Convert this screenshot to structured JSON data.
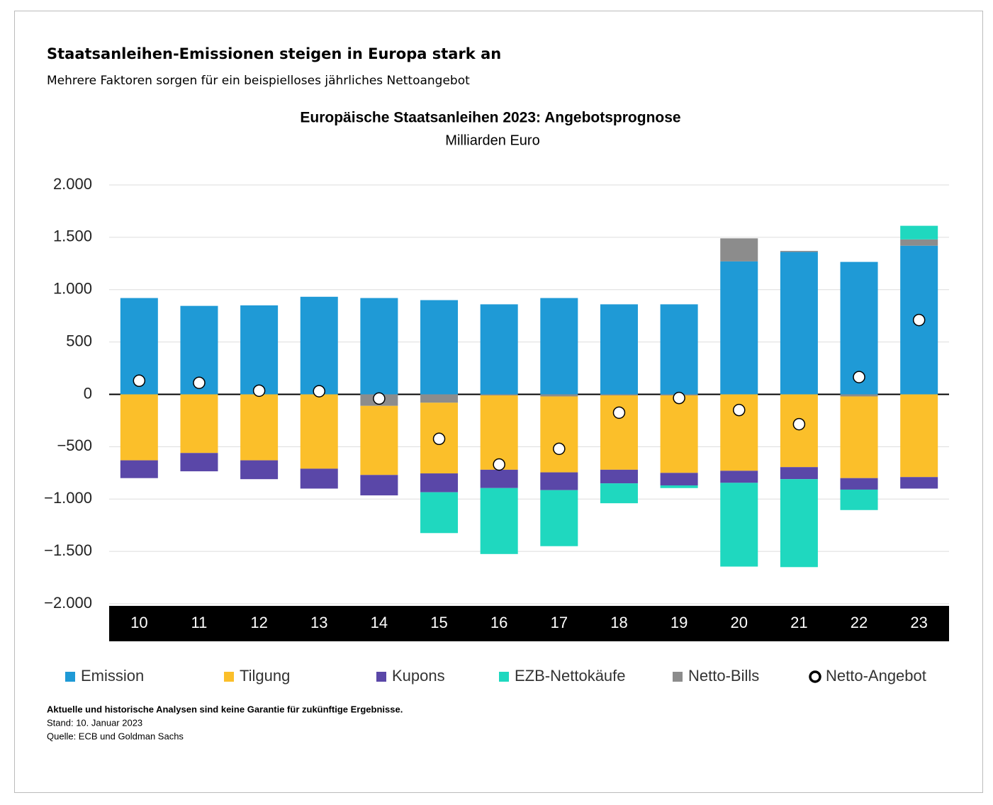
{
  "header": {
    "title": "Staatsanleihen-Emissionen steigen in Europa stark an",
    "subtitle": "Mehrere Faktoren sorgen für ein beispielloses jährliches Nettoangebot"
  },
  "chart_data": {
    "type": "bar",
    "stacked": true,
    "title": "Europäische Staatsanleihen 2023: Angebotsprognose",
    "subtitle": "Milliarden Euro",
    "categories": [
      "10",
      "11",
      "12",
      "13",
      "14",
      "15",
      "16",
      "17",
      "18",
      "19",
      "20",
      "21",
      "22",
      "23"
    ],
    "series": [
      {
        "name": "Emission",
        "color": "#1f9ad6",
        "values": [
          920,
          845,
          850,
          932,
          920,
          900,
          860,
          920,
          860,
          860,
          1270,
          1360,
          1265,
          1420
        ]
      },
      {
        "name": "Tilgung",
        "color": "#fbbf2a",
        "values": [
          -630,
          -560,
          -630,
          -710,
          -660,
          -675,
          -710,
          -725,
          -710,
          -740,
          -730,
          -695,
          -780,
          -790
        ]
      },
      {
        "name": "Kupons",
        "color": "#5a47a8",
        "values": [
          -170,
          -175,
          -180,
          -190,
          -195,
          -180,
          -175,
          -170,
          -130,
          -120,
          -115,
          -115,
          -110,
          -110
        ]
      },
      {
        "name": "EZB-Nettokäufe",
        "color": "#1fd8bf",
        "values": [
          0,
          0,
          0,
          0,
          0,
          -390,
          -630,
          -535,
          -190,
          -25,
          -800,
          -840,
          -195,
          130
        ]
      },
      {
        "name": "Netto-Bills",
        "color": "#8c8c8c",
        "values": [
          0,
          0,
          0,
          0,
          -110,
          -80,
          -10,
          -20,
          -10,
          -10,
          220,
          10,
          -20,
          60
        ]
      },
      {
        "name": "Netto-Angebot",
        "type": "scatter",
        "color": "#000000",
        "values": [
          130,
          110,
          35,
          30,
          -40,
          -425,
          -670,
          -520,
          -175,
          -35,
          -150,
          -285,
          165,
          710
        ]
      }
    ],
    "ylim": [
      -2000,
      2000
    ],
    "yticks": [
      {
        "value": -2000,
        "label": "−2.000"
      },
      {
        "value": -1500,
        "label": "−1.500"
      },
      {
        "value": -1000,
        "label": "−1.000"
      },
      {
        "value": -500,
        "label": "−500"
      },
      0,
      500,
      {
        "value": 1000,
        "label": "1.000"
      },
      {
        "value": 1500,
        "label": "1.500"
      },
      {
        "value": 2000,
        "label": "2.000"
      }
    ],
    "grid": true
  },
  "notes": {
    "disclaimer": "Aktuelle und historische Analysen sind keine Garantie für zukünftige Ergebnisse.",
    "date": "Stand: 10. Januar 2023",
    "source": "Quelle: ECB und Goldman Sachs"
  }
}
